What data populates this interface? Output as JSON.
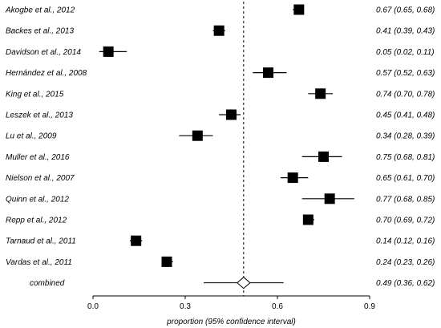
{
  "chart_data": {
    "type": "forest",
    "title": "",
    "xlabel": "proportion (95% confidence interval)",
    "xlim": [
      0,
      0.9
    ],
    "xticks": [
      "0.0",
      "0.3",
      "0.6",
      "0.9"
    ],
    "reference_line": 0.49,
    "colors": {
      "marker": "#000000",
      "background": "#ffffff"
    },
    "studies": [
      {
        "name": "Akogbe et al., 2012",
        "estimate": 0.67,
        "lower": 0.65,
        "upper": 0.68,
        "ci_text": "0.67 (0.65, 0.68)"
      },
      {
        "name": "Backes et al., 2013",
        "estimate": 0.41,
        "lower": 0.39,
        "upper": 0.43,
        "ci_text": "0.41 (0.39, 0.43)"
      },
      {
        "name": "Davidson et al., 2014",
        "estimate": 0.05,
        "lower": 0.02,
        "upper": 0.11,
        "ci_text": "0.05 (0.02, 0.11)"
      },
      {
        "name": "Hernández et al., 2008",
        "estimate": 0.57,
        "lower": 0.52,
        "upper": 0.63,
        "ci_text": "0.57 (0.52, 0.63)"
      },
      {
        "name": "King et al., 2015",
        "estimate": 0.74,
        "lower": 0.7,
        "upper": 0.78,
        "ci_text": "0.74 (0.70, 0.78)"
      },
      {
        "name": "Leszek et al., 2013",
        "estimate": 0.45,
        "lower": 0.41,
        "upper": 0.48,
        "ci_text": "0.45 (0.41, 0.48)"
      },
      {
        "name": "Lu et al., 2009",
        "estimate": 0.34,
        "lower": 0.28,
        "upper": 0.39,
        "ci_text": "0.34 (0.28, 0.39)"
      },
      {
        "name": "Muller et al., 2016",
        "estimate": 0.75,
        "lower": 0.68,
        "upper": 0.81,
        "ci_text": "0.75 (0.68, 0.81)"
      },
      {
        "name": "Nielson et al., 2007",
        "estimate": 0.65,
        "lower": 0.61,
        "upper": 0.7,
        "ci_text": "0.65 (0.61, 0.70)"
      },
      {
        "name": "Quinn et al., 2012",
        "estimate": 0.77,
        "lower": 0.68,
        "upper": 0.85,
        "ci_text": "0.77 (0.68, 0.85)"
      },
      {
        "name": "Repp et al., 2012",
        "estimate": 0.7,
        "lower": 0.69,
        "upper": 0.72,
        "ci_text": "0.70 (0.69, 0.72)"
      },
      {
        "name": "Tarnaud et al., 2011",
        "estimate": 0.14,
        "lower": 0.12,
        "upper": 0.16,
        "ci_text": "0.14 (0.12, 0.16)"
      },
      {
        "name": "Vardas et al., 2011",
        "estimate": 0.24,
        "lower": 0.23,
        "upper": 0.26,
        "ci_text": "0.24 (0.23, 0.26)"
      }
    ],
    "combined": {
      "name": "combined",
      "estimate": 0.49,
      "lower": 0.36,
      "upper": 0.62,
      "ci_text": "0.49 (0.36, 0.62)"
    }
  }
}
